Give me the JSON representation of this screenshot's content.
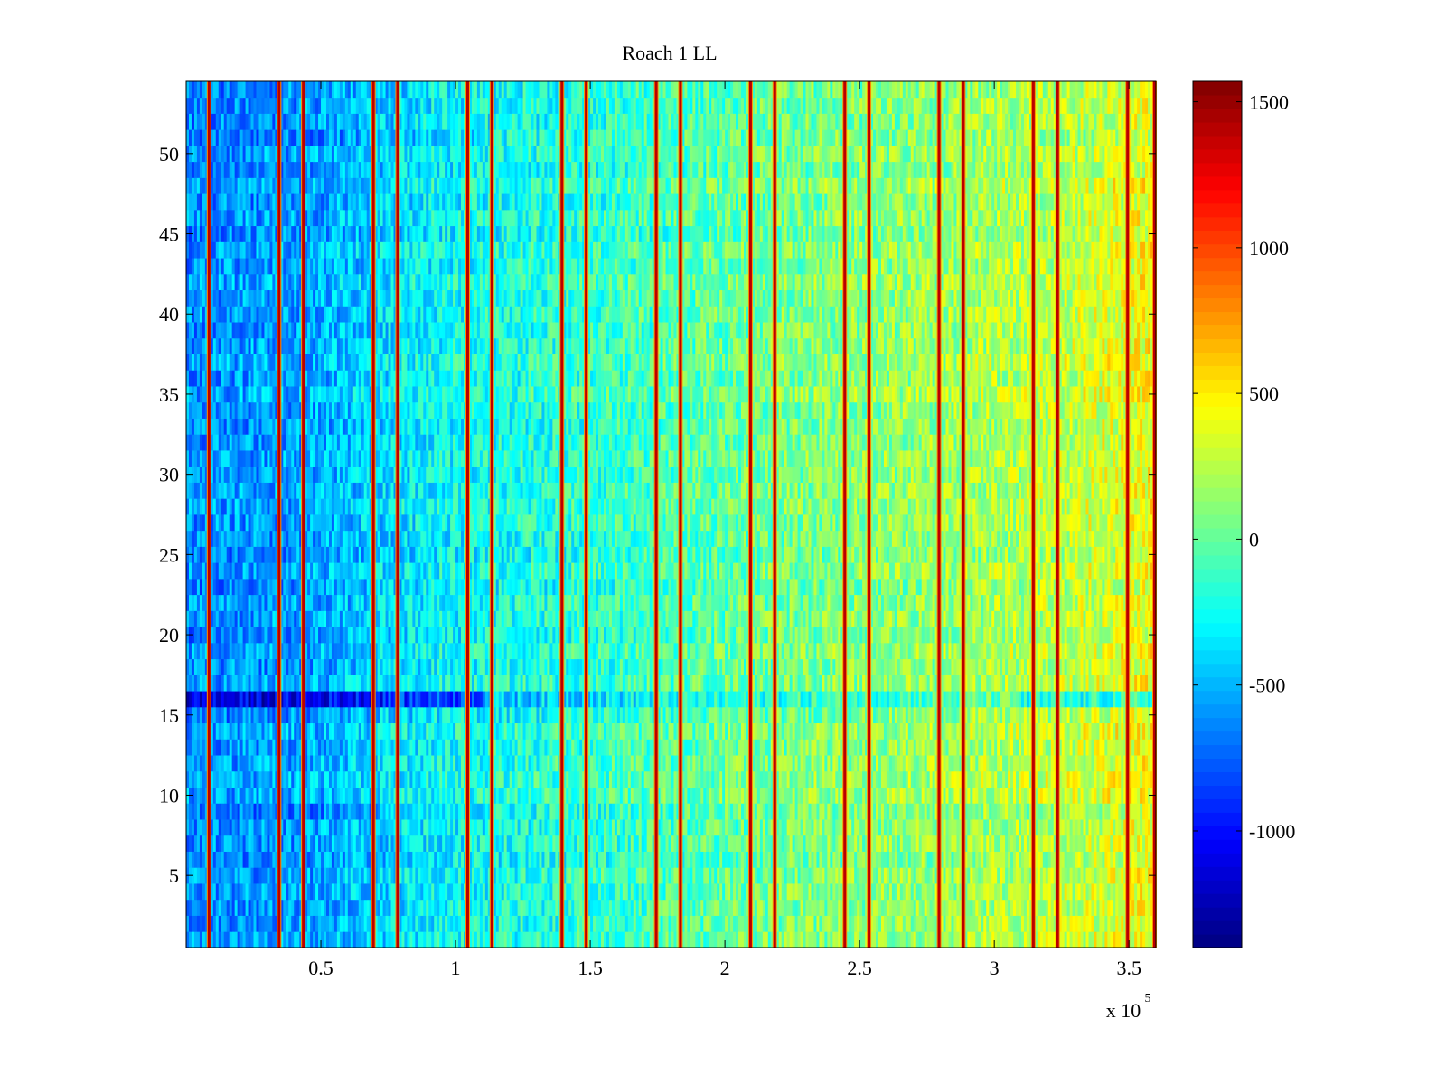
{
  "chart_data": {
    "type": "heatmap",
    "title": "Roach 1 LL",
    "xlabel": "",
    "ylabel": "",
    "x_exponent_label": "x 10",
    "x_exponent": "5",
    "x_multiplier": 100000,
    "xlim": [
      0,
      3.6
    ],
    "ylim": [
      0.5,
      54.5
    ],
    "x_ticks": [
      {
        "value": 0.5,
        "label": "0.5"
      },
      {
        "value": 1.0,
        "label": "1"
      },
      {
        "value": 1.5,
        "label": "1.5"
      },
      {
        "value": 2.0,
        "label": "2"
      },
      {
        "value": 2.5,
        "label": "2.5"
      },
      {
        "value": 3.0,
        "label": "3"
      },
      {
        "value": 3.5,
        "label": "3.5"
      }
    ],
    "y_ticks": [
      {
        "value": 5,
        "label": "5"
      },
      {
        "value": 10,
        "label": "10"
      },
      {
        "value": 15,
        "label": "15"
      },
      {
        "value": 20,
        "label": "20"
      },
      {
        "value": 25,
        "label": "25"
      },
      {
        "value": 30,
        "label": "30"
      },
      {
        "value": 35,
        "label": "35"
      },
      {
        "value": 40,
        "label": "40"
      },
      {
        "value": 45,
        "label": "45"
      },
      {
        "value": 50,
        "label": "50"
      }
    ],
    "rows": 54,
    "colormap": "jet",
    "clim": [
      -1400,
      1570
    ],
    "colorbar_ticks": [
      {
        "value": 1500,
        "label": "1500"
      },
      {
        "value": 1000,
        "label": "1000"
      },
      {
        "value": 500,
        "label": "500"
      },
      {
        "value": 0,
        "label": "0"
      },
      {
        "value": -500,
        "label": "-500"
      },
      {
        "value": -1000,
        "label": "-1000"
      }
    ],
    "baseline_trend": [
      {
        "x": 0.0,
        "value": -620
      },
      {
        "x": 0.45,
        "value": -560
      },
      {
        "x": 0.9,
        "value": -300
      },
      {
        "x": 1.5,
        "value": -150
      },
      {
        "x": 2.2,
        "value": 50
      },
      {
        "x": 2.8,
        "value": 150
      },
      {
        "x": 3.3,
        "value": 280
      },
      {
        "x": 3.6,
        "value": 430
      }
    ],
    "highlighted_rows": [
      {
        "row": 16,
        "offset": -500
      },
      {
        "row": 9,
        "offset": -150
      },
      {
        "row": 51,
        "offset": -150
      }
    ],
    "vertical_stripes": [
      {
        "x": 0.085,
        "value": 1400
      },
      {
        "x": 0.345,
        "value": 1400
      },
      {
        "x": 0.435,
        "value": 1400
      },
      {
        "x": 0.695,
        "value": 1400
      },
      {
        "x": 0.785,
        "value": 1400
      },
      {
        "x": 1.045,
        "value": 1400
      },
      {
        "x": 1.135,
        "value": 1400
      },
      {
        "x": 1.395,
        "value": 1400
      },
      {
        "x": 1.485,
        "value": 1400
      },
      {
        "x": 1.745,
        "value": 1400
      },
      {
        "x": 1.835,
        "value": 1400
      },
      {
        "x": 2.095,
        "value": 1400
      },
      {
        "x": 2.185,
        "value": 1400
      },
      {
        "x": 2.445,
        "value": 1400
      },
      {
        "x": 2.535,
        "value": 1400
      },
      {
        "x": 2.795,
        "value": 1400
      },
      {
        "x": 2.885,
        "value": 1400
      },
      {
        "x": 3.145,
        "value": 1400
      },
      {
        "x": 3.235,
        "value": 1400
      },
      {
        "x": 3.495,
        "value": 1400
      },
      {
        "x": 3.595,
        "value": 1400
      }
    ]
  }
}
